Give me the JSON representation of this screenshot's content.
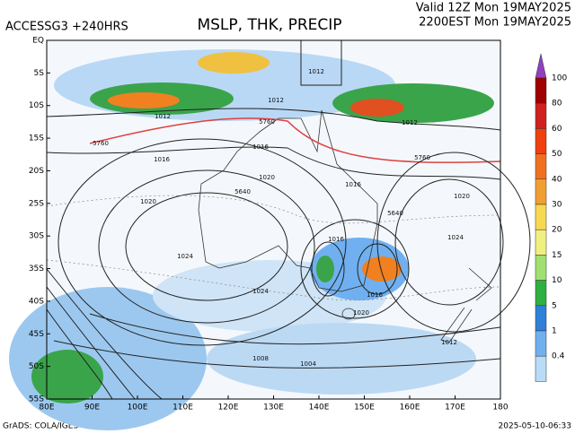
{
  "header": {
    "model": "ACCESSG3 +240HRS",
    "title": "MSLP, THK, PRECIP",
    "valid": "Valid 12Z Mon 19MAY2025",
    "local": "2200EST Mon 19MAY2025"
  },
  "lat_labels": [
    "EQ",
    "5S",
    "10S",
    "15S",
    "20S",
    "25S",
    "30S",
    "35S",
    "40S",
    "45S",
    "50S",
    "55S"
  ],
  "lon_labels": [
    "80E",
    "90E",
    "100E",
    "110E",
    "120E",
    "130E",
    "140E",
    "150E",
    "160E",
    "170E",
    "180"
  ],
  "colorbar_labels": [
    "100",
    "80",
    "60",
    "50",
    "40",
    "30",
    "20",
    "15",
    "10",
    "5",
    "1",
    "0.4"
  ],
  "contour_labels": [
    "1012",
    "1012",
    "1012",
    "1012",
    "5760",
    "5760",
    "1016",
    "1016",
    "1016",
    "1020",
    "1020",
    "1020",
    "5640",
    "5640",
    "1024",
    "1024",
    "1024",
    "1016",
    "1016",
    "1020",
    "1008",
    "1004",
    "5760",
    "1012"
  ],
  "footer": {
    "credit": "GrADS: COLA/IGES",
    "stamp": "2025-05-10-06:33"
  }
}
